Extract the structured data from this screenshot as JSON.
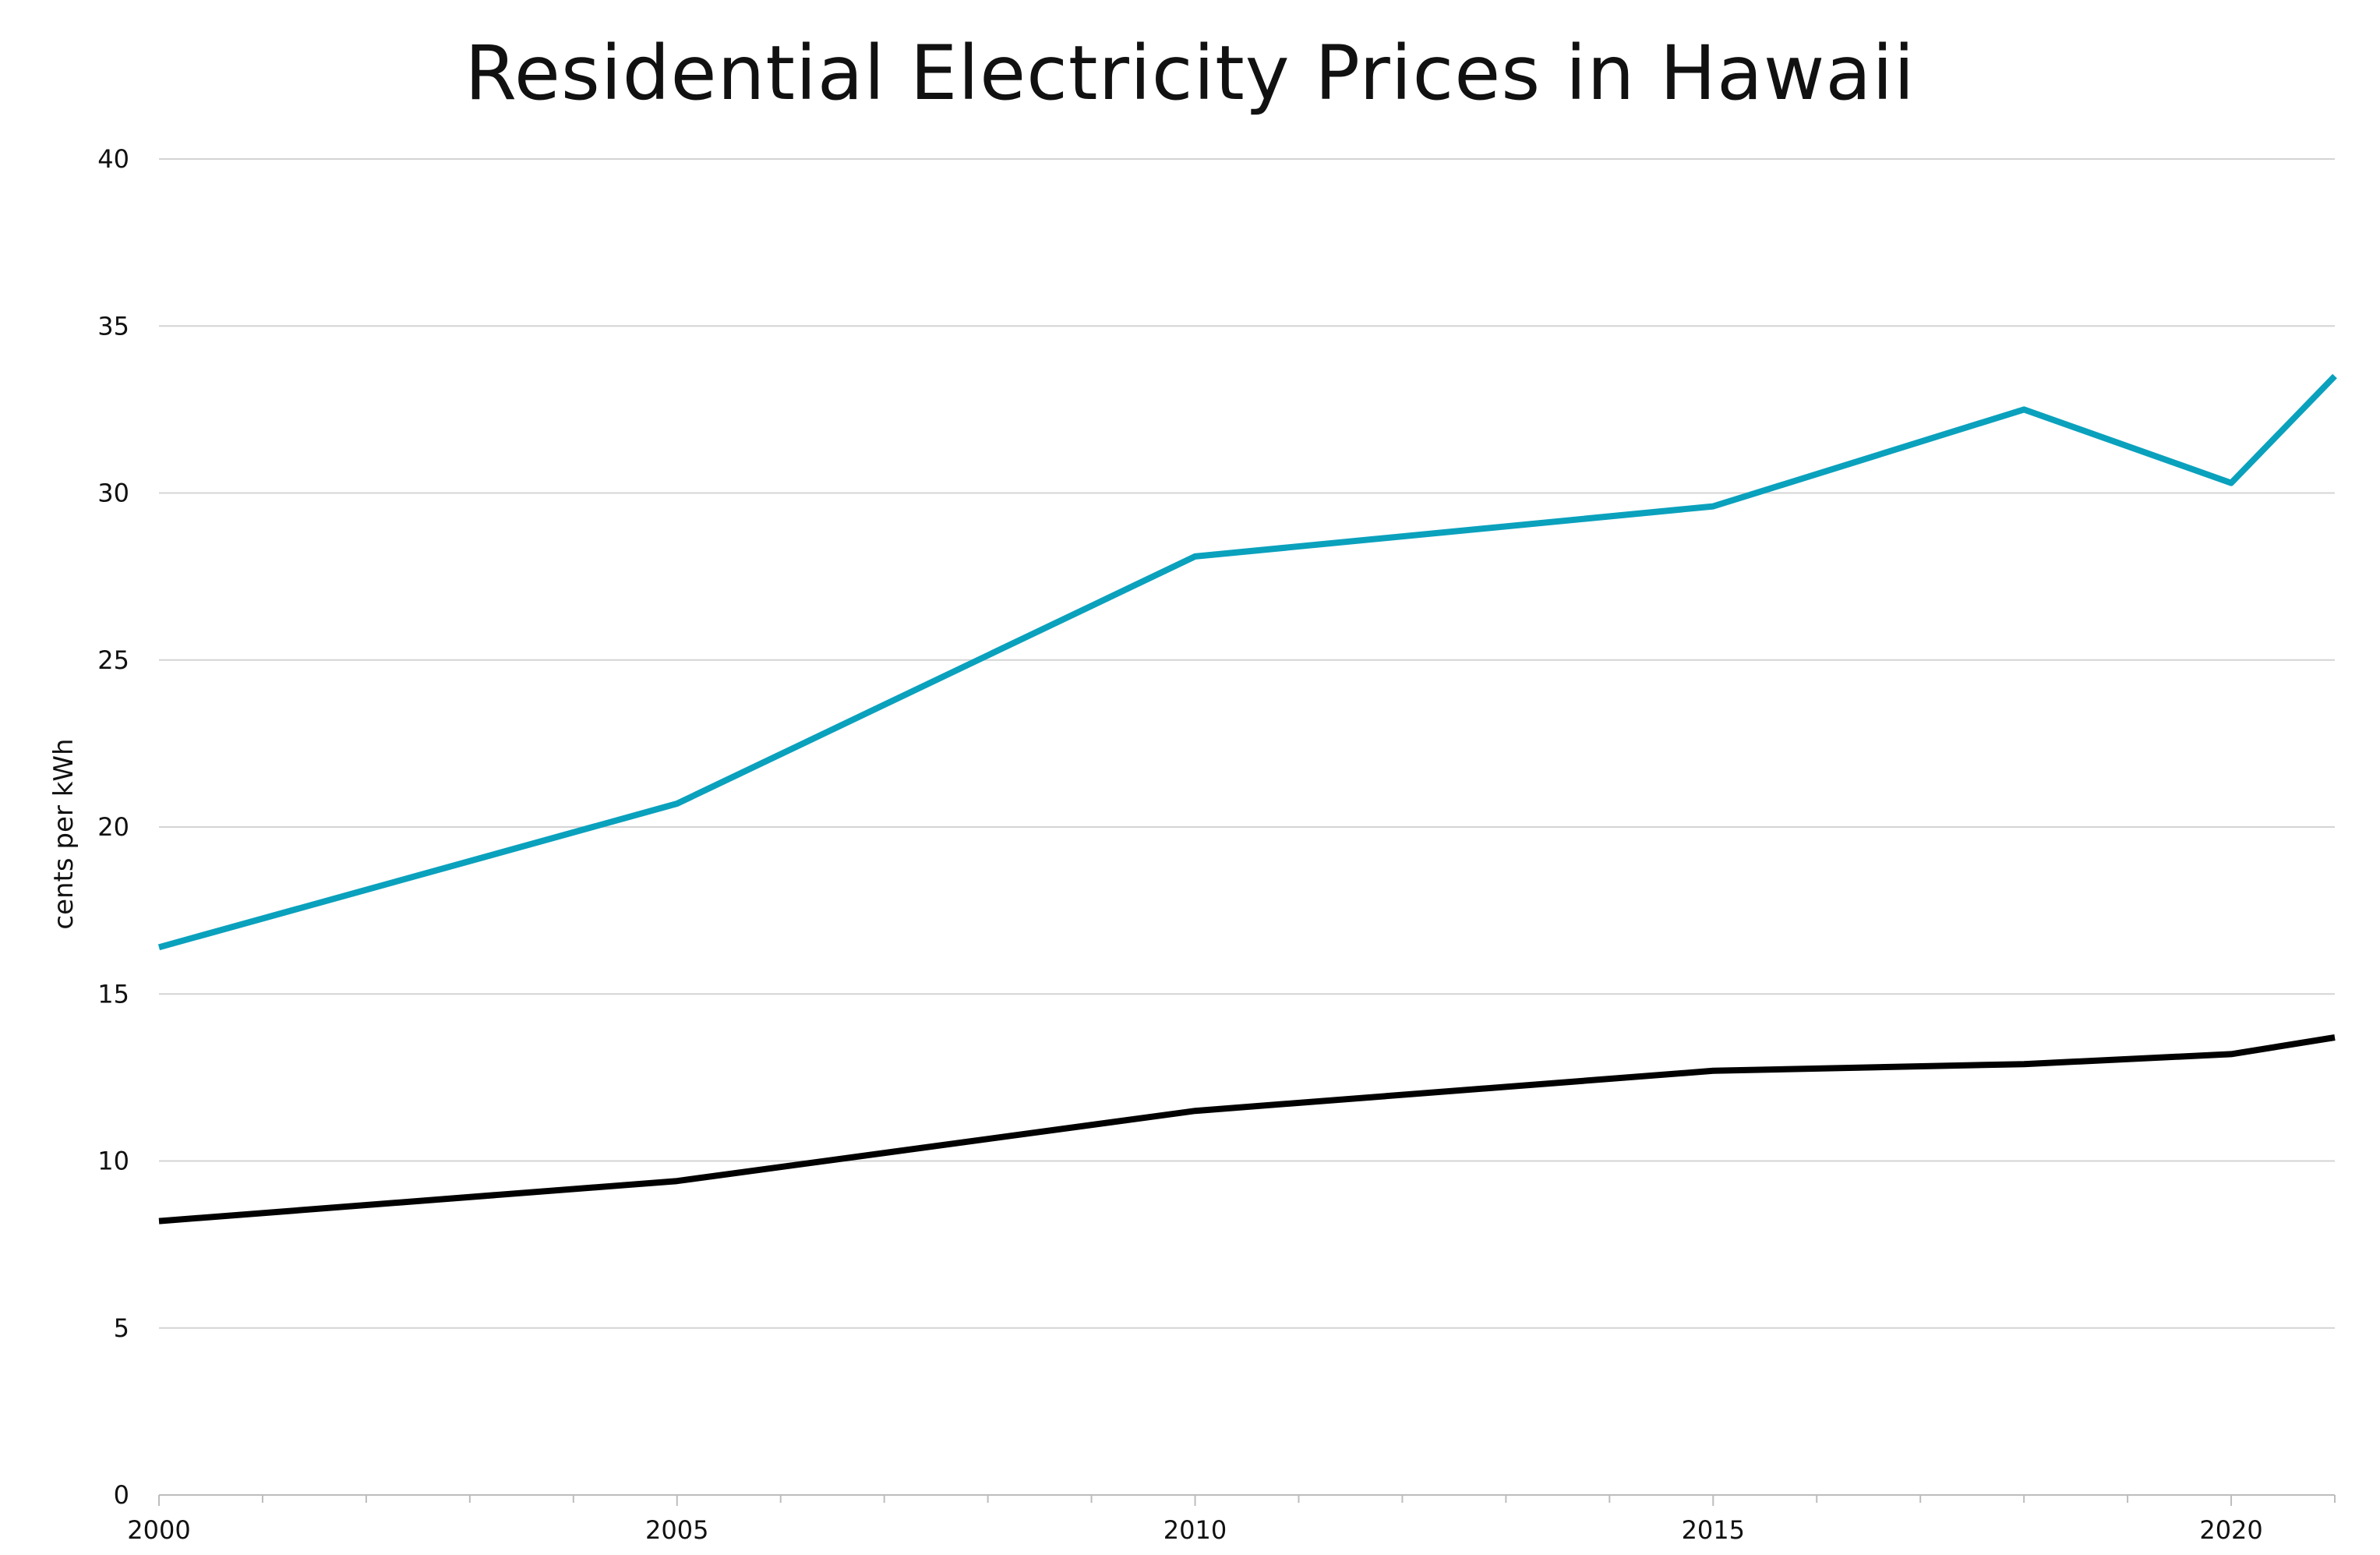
{
  "chart_data": {
    "type": "line",
    "title": "Residential Electricity Prices in Hawaii",
    "xlabel": "",
    "ylabel": "cents per kWh",
    "xlim": [
      2000,
      2021
    ],
    "ylim": [
      0,
      40
    ],
    "x_ticks": [
      2000,
      2005,
      2010,
      2015,
      2020
    ],
    "y_ticks": [
      0,
      5,
      10,
      15,
      20,
      25,
      30,
      35,
      40
    ],
    "grid": "horizontal",
    "legend": "none",
    "series": [
      {
        "color": "#0aa1bd",
        "x": [
          2000,
          2005,
          2010,
          2015,
          2018,
          2020,
          2021
        ],
        "values": [
          16.4,
          20.7,
          28.1,
          29.6,
          32.5,
          30.3,
          33.5
        ]
      },
      {
        "color": "#000000",
        "x": [
          2000,
          2005,
          2010,
          2015,
          2018,
          2020,
          2021
        ],
        "values": [
          8.2,
          9.4,
          11.5,
          12.7,
          12.9,
          13.2,
          13.7
        ]
      }
    ]
  }
}
